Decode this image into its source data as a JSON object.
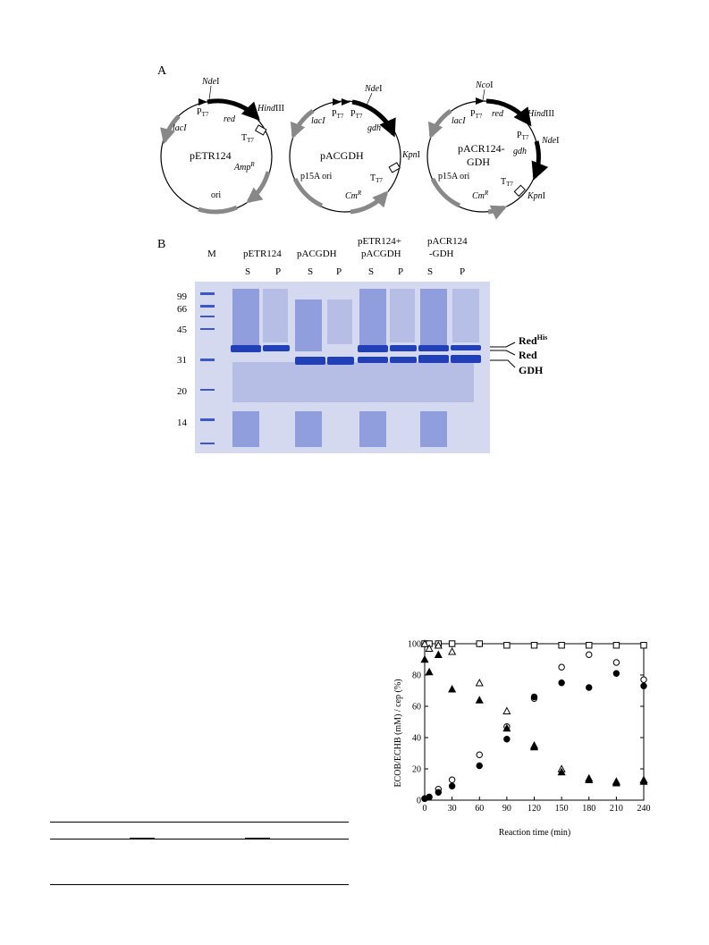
{
  "panel_a": {
    "label": "A",
    "plasmids": [
      {
        "name": "pETR124",
        "labels": {
          "site1": {
            "italic": "Nde",
            "roman": "I"
          },
          "promoter": {
            "main": "P",
            "sub": "T7"
          },
          "gene": "red",
          "site2": {
            "italic": "Hind",
            "roman": "III"
          },
          "terminator": {
            "main": "T",
            "sub": "T7"
          },
          "lac": "lacI",
          "amp": {
            "main": "Amp",
            "sup": "R"
          },
          "ori": "ori"
        }
      },
      {
        "name": "pACGDH",
        "labels": {
          "site1": {
            "italic": "Nde",
            "roman": "I"
          },
          "lac": "lacI",
          "promoter1": {
            "main": "P",
            "sub": "T7"
          },
          "promoter2": {
            "main": "P",
            "sub": "T7"
          },
          "gene": "gdh",
          "site2": {
            "italic": "Kpn",
            "roman": "I"
          },
          "terminator": {
            "main": "T",
            "sub": "T7"
          },
          "ori": "p15A ori",
          "cm": {
            "main": "Cm",
            "sup": "R"
          }
        }
      },
      {
        "name_line1": "pACR124-",
        "name_line2": "GDH",
        "labels": {
          "site1": {
            "italic": "Nco",
            "roman": "I"
          },
          "lac": "lacI",
          "promoter1": {
            "main": "P",
            "sub": "T7"
          },
          "gene1": "red",
          "site2": {
            "italic": "Hind",
            "roman": "III"
          },
          "promoter2": {
            "main": "P",
            "sub": "T7"
          },
          "site3": {
            "italic": "Nde",
            "roman": "I"
          },
          "gene2": "gdh",
          "terminator": {
            "main": "T",
            "sub": "T7"
          },
          "site4": {
            "italic": "Kpn",
            "roman": "I"
          },
          "ori": "p15A ori",
          "cm": {
            "main": "Cm",
            "sup": "R"
          }
        }
      }
    ]
  },
  "panel_b": {
    "label": "B",
    "marker_label": "M",
    "groups": [
      {
        "line1": "pETR124",
        "line2": ""
      },
      {
        "line1": "pACGDH",
        "line2": ""
      },
      {
        "line1": "pETR124+",
        "line2": "pACGDH"
      },
      {
        "line1": "pACR124",
        "line2": "-GDH"
      }
    ],
    "lane_labels": [
      "S",
      "P",
      "S",
      "P",
      "S",
      "P",
      "S",
      "P"
    ],
    "mw_markers": [
      "99",
      "66",
      "45",
      "31",
      "20",
      "14"
    ],
    "band_labels": {
      "redhis": {
        "main": "Red",
        "sup": "His"
      },
      "red": "Red",
      "gdh": "GDH"
    },
    "colors": {
      "gel_bg": "#d5d9ef",
      "band": "#2140b8",
      "band_light": "#7d8fd6"
    }
  },
  "chart_data": {
    "type": "scatter",
    "xlabel": "Reaction time (min)",
    "ylabel": "ECOB/ECHB (mM) / cep (%)",
    "xlim": [
      0,
      240
    ],
    "ylim": [
      0,
      100
    ],
    "xticks": [
      0,
      30,
      60,
      90,
      120,
      150,
      180,
      210,
      240
    ],
    "yticks": [
      0,
      20,
      40,
      60,
      80,
      100
    ],
    "grid": false,
    "series": [
      {
        "marker": "open-square",
        "x": [
          0,
          5,
          15,
          30,
          60,
          90,
          120,
          150,
          180,
          210,
          240
        ],
        "y": [
          100,
          100,
          100,
          100,
          100,
          99,
          99,
          99,
          99,
          99,
          99
        ]
      },
      {
        "marker": "open-circle",
        "x": [
          0,
          5,
          15,
          30,
          60,
          90,
          120,
          150,
          180,
          210,
          240
        ],
        "y": [
          1,
          2,
          7,
          13,
          29,
          47,
          65,
          85,
          93,
          88,
          77
        ]
      },
      {
        "marker": "filled-circle",
        "x": [
          0,
          5,
          15,
          30,
          60,
          90,
          120,
          150,
          180,
          210,
          240
        ],
        "y": [
          1,
          2,
          5,
          9,
          22,
          39,
          66,
          75,
          72,
          81,
          73
        ]
      },
      {
        "marker": "open-triangle",
        "x": [
          0,
          5,
          15,
          30,
          60,
          90,
          120,
          150,
          180,
          210,
          240
        ],
        "y": [
          100,
          97,
          99,
          95,
          75,
          57,
          35,
          20,
          14,
          12,
          13
        ]
      },
      {
        "marker": "filled-triangle",
        "x": [
          0,
          5,
          15,
          30,
          60,
          90,
          120,
          150,
          180,
          210,
          240
        ],
        "y": [
          90,
          82,
          93,
          71,
          64,
          46,
          34,
          18,
          13,
          11,
          12
        ]
      }
    ]
  }
}
